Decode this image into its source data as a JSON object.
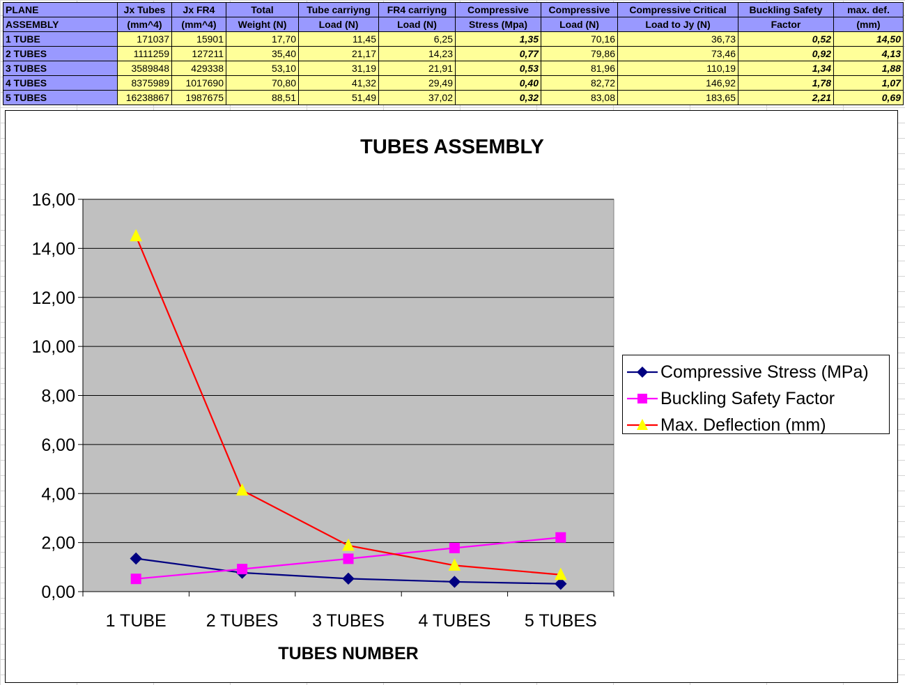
{
  "table": {
    "header_row1": [
      "PLANE",
      "Jx Tubes",
      "Jx FR4",
      "Total",
      "Tube carriyng",
      "FR4 carriyng",
      "Compressive",
      "Compressive",
      "Compressive Critical",
      "Buckling Safety",
      "max. def."
    ],
    "header_row2": [
      "ASSEMBLY",
      "(mm^4)",
      "(mm^4)",
      "Weight (N)",
      "Load (N)",
      "Load (N)",
      "Stress (Mpa)",
      "Load (N)",
      "Load to Jy (N)",
      "Factor",
      "(mm)"
    ],
    "rows": [
      [
        "1 TUBE",
        "171037",
        "15901",
        "17,70",
        "11,45",
        "6,25",
        "1,35",
        "70,16",
        "36,73",
        "0,52",
        "14,50"
      ],
      [
        "2 TUBES",
        "1111259",
        "127211",
        "35,40",
        "21,17",
        "14,23",
        "0,77",
        "79,86",
        "73,46",
        "0,92",
        "4,13"
      ],
      [
        "3 TUBES",
        "3589848",
        "429338",
        "53,10",
        "31,19",
        "21,91",
        "0,53",
        "81,96",
        "110,19",
        "1,34",
        "1,88"
      ],
      [
        "4 TUBES",
        "8375989",
        "1017690",
        "70,80",
        "41,32",
        "29,49",
        "0,40",
        "82,72",
        "146,92",
        "1,78",
        "1,07"
      ],
      [
        "5 TUBES",
        "16238867",
        "1987675",
        "88,51",
        "51,49",
        "37,02",
        "0,32",
        "83,08",
        "183,65",
        "2,21",
        "0,69"
      ]
    ]
  },
  "chart_data": {
    "type": "line",
    "title": "TUBES ASSEMBLY",
    "xlabel": "TUBES NUMBER",
    "ylabel": "",
    "categories": [
      "1 TUBE",
      "2 TUBES",
      "3 TUBES",
      "4 TUBES",
      "5 TUBES"
    ],
    "ylim": [
      0,
      16
    ],
    "yticks": [
      "0,00",
      "2,00",
      "4,00",
      "6,00",
      "8,00",
      "10,00",
      "12,00",
      "14,00",
      "16,00"
    ],
    "grid": true,
    "legend_position": "right",
    "series": [
      {
        "name": "Compressive Stress (MPa)",
        "values": [
          1.35,
          0.77,
          0.53,
          0.4,
          0.32
        ],
        "color": "#000080",
        "marker": "diamond"
      },
      {
        "name": "Buckling Safety Factor",
        "values": [
          0.52,
          0.92,
          1.34,
          1.78,
          2.21
        ],
        "color": "#ff00ff",
        "marker": "square"
      },
      {
        "name": "Max. Deflection (mm)",
        "values": [
          14.5,
          4.13,
          1.88,
          1.07,
          0.69
        ],
        "color": "#ff0000",
        "marker": "triangle",
        "marker_color": "#ffff00"
      }
    ],
    "plot_background": "#c0c0c0"
  }
}
